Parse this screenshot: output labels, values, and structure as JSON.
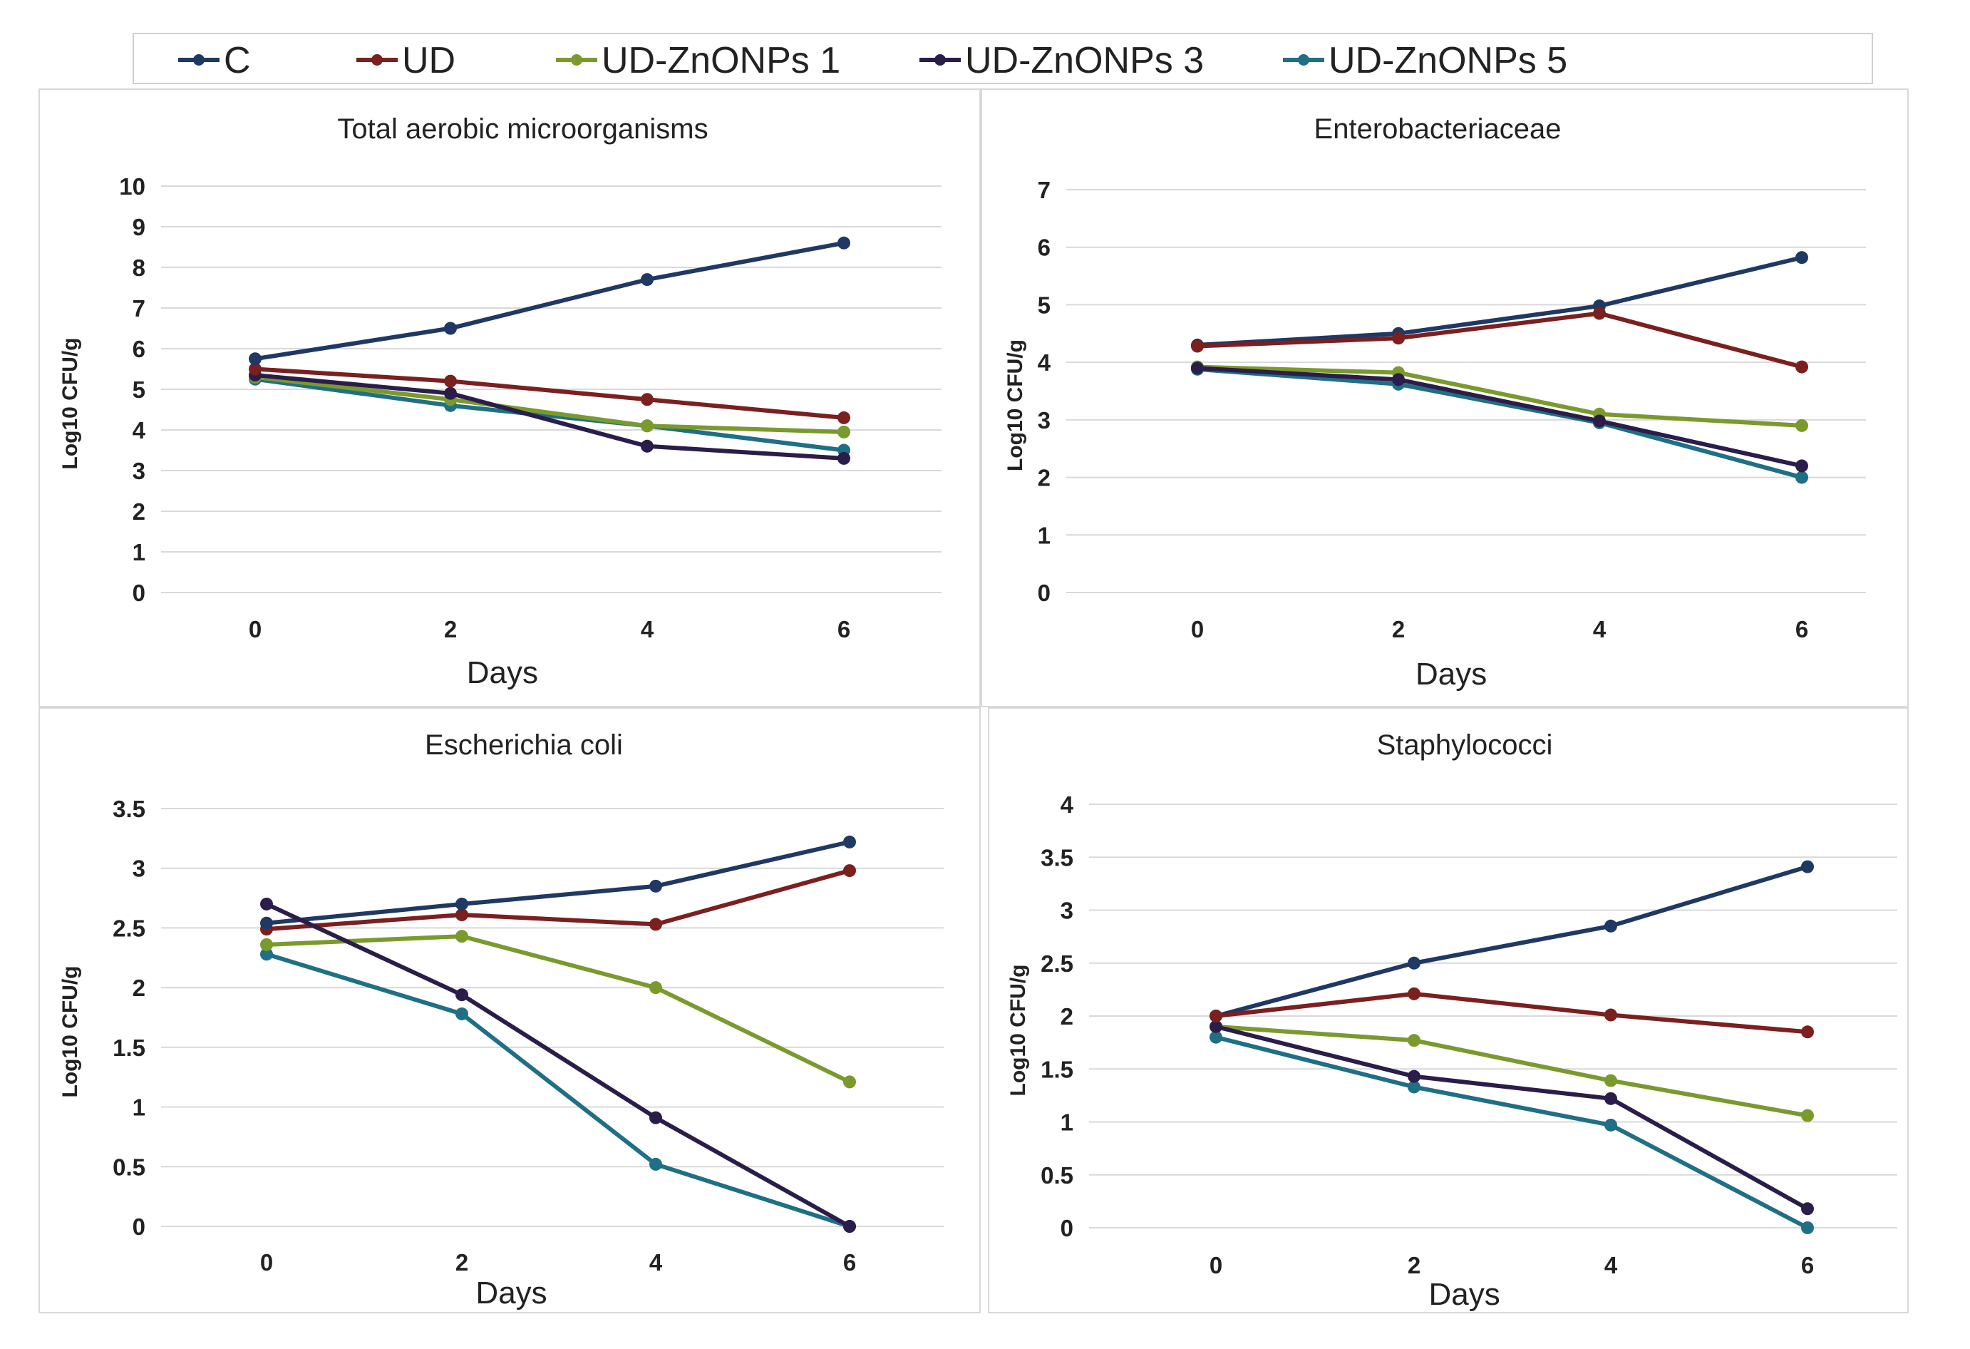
{
  "legend": [
    {
      "name": "C",
      "color": "#1f3864"
    },
    {
      "name": "UD",
      "color": "#7b1f1f"
    },
    {
      "name": "UD-ZnONPs  1",
      "color": "#7a9a2e"
    },
    {
      "name": "UD-ZnONPs 3",
      "color": "#2b1d4a"
    },
    {
      "name": "UD-ZnONPs 5",
      "color": "#1f6f86"
    }
  ],
  "chart_data": [
    {
      "type": "line",
      "title": "Total aerobic microorganisms",
      "xlabel": "Days",
      "ylabel": "Log10 CFU/g",
      "x": [
        0,
        2,
        4,
        6
      ],
      "ylim": [
        0,
        10
      ],
      "yticks": [
        "0",
        "1",
        "2",
        "3",
        "4",
        "5",
        "6",
        "7",
        "8",
        "9",
        "10"
      ],
      "series": [
        {
          "name": "UD-ZnONPs 5",
          "color": "#1f6f86",
          "values": [
            5.25,
            4.6,
            4.1,
            3.5
          ]
        },
        {
          "name": "UD-ZnONPs  1",
          "color": "#7a9a2e",
          "values": [
            5.3,
            4.75,
            4.1,
            3.95
          ]
        },
        {
          "name": "UD-ZnONPs 3",
          "color": "#2b1d4a",
          "values": [
            5.35,
            4.9,
            3.6,
            3.3
          ]
        },
        {
          "name": "UD",
          "color": "#7b1f1f",
          "values": [
            5.5,
            5.2,
            4.75,
            4.3
          ]
        },
        {
          "name": "C",
          "color": "#1f3864",
          "values": [
            5.75,
            6.5,
            7.7,
            8.6
          ]
        }
      ]
    },
    {
      "type": "line",
      "title": "Enterobacteriaceae",
      "xlabel": "Days",
      "ylabel": "Log10 CFU/g",
      "x": [
        0,
        2,
        4,
        6
      ],
      "ylim": [
        0,
        7
      ],
      "yticks": [
        "0",
        "1",
        "2",
        "3",
        "4",
        "5",
        "6",
        "7"
      ],
      "series": [
        {
          "name": "UD-ZnONPs 5",
          "color": "#1f6f86",
          "values": [
            3.88,
            3.62,
            2.95,
            2.0
          ]
        },
        {
          "name": "UD-ZnONPs  1",
          "color": "#7a9a2e",
          "values": [
            3.92,
            3.82,
            3.1,
            2.9
          ]
        },
        {
          "name": "UD-ZnONPs 3",
          "color": "#2b1d4a",
          "values": [
            3.9,
            3.7,
            2.98,
            2.2
          ]
        },
        {
          "name": "C",
          "color": "#1f3864",
          "values": [
            4.3,
            4.5,
            4.98,
            5.82
          ]
        },
        {
          "name": "UD",
          "color": "#7b1f1f",
          "values": [
            4.28,
            4.42,
            4.85,
            3.92
          ]
        }
      ]
    },
    {
      "type": "line",
      "title": "Escherichia coli",
      "xlabel": "Days",
      "ylabel": "Log10 CFU/g",
      "x": [
        0,
        2,
        4,
        6
      ],
      "ylim": [
        0,
        3.5
      ],
      "yticks": [
        "0",
        "0.5",
        "1",
        "1.5",
        "2",
        "2.5",
        "3",
        "3.5"
      ],
      "series": [
        {
          "name": "UD-ZnONPs 5",
          "color": "#1f6f86",
          "values": [
            2.28,
            1.78,
            0.52,
            0.0
          ]
        },
        {
          "name": "UD-ZnONPs  1",
          "color": "#7a9a2e",
          "values": [
            2.36,
            2.43,
            2.0,
            1.21
          ]
        },
        {
          "name": "UD",
          "color": "#7b1f1f",
          "values": [
            2.49,
            2.61,
            2.53,
            2.98
          ]
        },
        {
          "name": "C",
          "color": "#1f3864",
          "values": [
            2.54,
            2.7,
            2.85,
            3.22
          ]
        },
        {
          "name": "UD-ZnONPs 3",
          "color": "#2b1d4a",
          "values": [
            2.7,
            1.94,
            0.91,
            0.0
          ]
        }
      ]
    },
    {
      "type": "line",
      "title": "Staphylococci",
      "xlabel": "Days",
      "ylabel": "Log10 CFU/g",
      "x": [
        0,
        2,
        4,
        6
      ],
      "ylim": [
        0,
        4
      ],
      "yticks": [
        "0",
        "0.5",
        "1",
        "1.5",
        "2",
        "2.5",
        "3",
        "3.5",
        "4"
      ],
      "series": [
        {
          "name": "UD-ZnONPs 5",
          "color": "#1f6f86",
          "values": [
            1.8,
            1.33,
            0.97,
            0.0
          ]
        },
        {
          "name": "UD-ZnONPs  1",
          "color": "#7a9a2e",
          "values": [
            1.9,
            1.77,
            1.39,
            1.06
          ]
        },
        {
          "name": "UD-ZnONPs 3",
          "color": "#2b1d4a",
          "values": [
            1.9,
            1.43,
            1.22,
            0.18
          ]
        },
        {
          "name": "C",
          "color": "#1f3864",
          "values": [
            2.0,
            2.5,
            2.85,
            3.41
          ]
        },
        {
          "name": "UD",
          "color": "#7b1f1f",
          "values": [
            2.0,
            2.21,
            2.01,
            1.85
          ]
        }
      ]
    }
  ]
}
